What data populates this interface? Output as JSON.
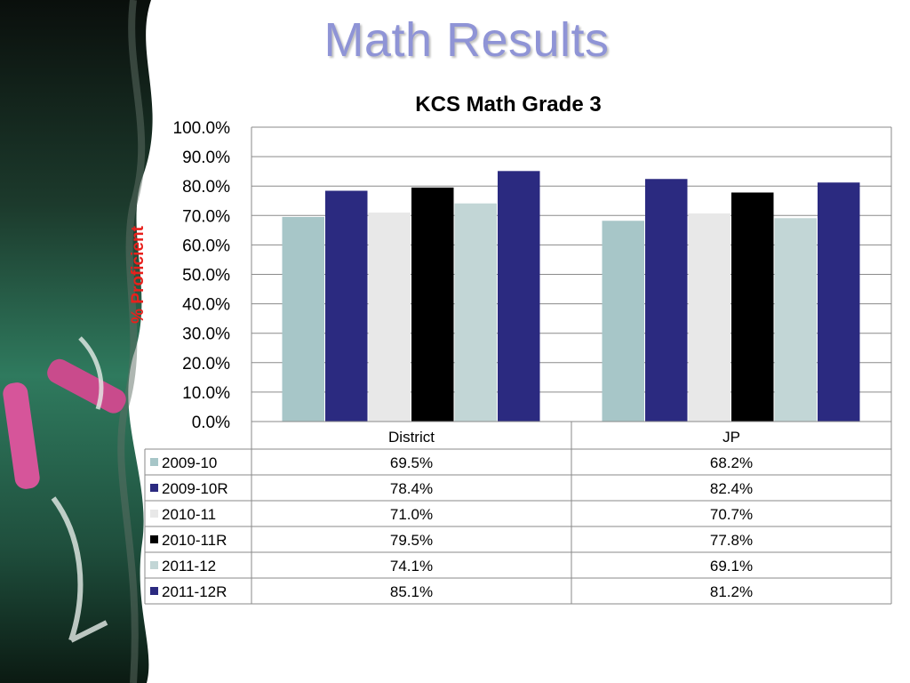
{
  "slide": {
    "title": "Math Results"
  },
  "colors": {
    "title": "#8f94d6",
    "ylabel": "#e8201c",
    "series": [
      "#a7c6c8",
      "#2b2a80",
      "#e8e8e8",
      "#000000",
      "#c2d6d6",
      "#2b2a80"
    ]
  },
  "chart_data": {
    "type": "bar",
    "title": "KCS Math Grade 3",
    "ylabel": "% Proficient",
    "xlabel": "",
    "categories": [
      "District",
      "JP"
    ],
    "ylim": [
      0,
      100
    ],
    "ytick_labels": [
      "0.0%",
      "10.0%",
      "20.0%",
      "30.0%",
      "40.0%",
      "50.0%",
      "60.0%",
      "70.0%",
      "80.0%",
      "90.0%",
      "100.0%"
    ],
    "grid": true,
    "legend": "data-table",
    "series": [
      {
        "name": "2009-10",
        "values": [
          69.5,
          68.2
        ],
        "labels": [
          "69.5%",
          "68.2%"
        ]
      },
      {
        "name": "2009-10R",
        "values": [
          78.4,
          82.4
        ],
        "labels": [
          "78.4%",
          "82.4%"
        ]
      },
      {
        "name": "2010-11",
        "values": [
          71.0,
          70.7
        ],
        "labels": [
          "71.0%",
          "70.7%"
        ]
      },
      {
        "name": "2010-11R",
        "values": [
          79.5,
          77.8
        ],
        "labels": [
          "79.5%",
          "77.8%"
        ]
      },
      {
        "name": "2011-12",
        "values": [
          74.1,
          69.1
        ],
        "labels": [
          "74.1%",
          "69.1%"
        ]
      },
      {
        "name": "2011-12R",
        "values": [
          85.1,
          81.2
        ],
        "labels": [
          "85.1%",
          "81.2%"
        ]
      }
    ]
  }
}
